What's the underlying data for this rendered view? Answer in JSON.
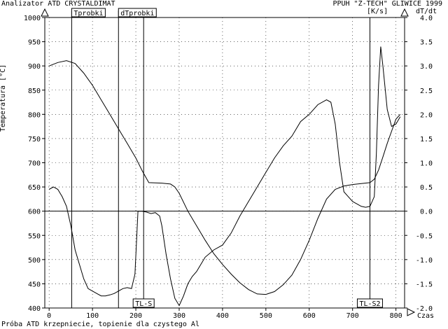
{
  "header": {
    "left_title": "Analizator ATD CRYSTALDIMAT",
    "right_title": "PPUH \"Z-TECH\" GLIWICE 1999",
    "right_unit": "[K/s]",
    "right_axis_symbol": "dT/dt",
    "left_axis_label": "Temperatura [°C]"
  },
  "footer": {
    "caption": "Próba ATD krzepniecie, topienie dla czystego Al",
    "x_axis_label": "Czas"
  },
  "markers": {
    "tprobki": "Tprobki",
    "dtprobki": "dTprobki",
    "tl_s": "TL-S",
    "tl_s2": "TL-S2"
  },
  "chart_data": {
    "type": "line",
    "title": "Analizator ATD CRYSTALDIMAT",
    "xlabel": "Czas",
    "ylabel": "Temperatura [°C]",
    "y2label": "dT/dt [K/s]",
    "xlim": [
      -10,
      820
    ],
    "ylim": [
      400,
      1000
    ],
    "y2lim": [
      -2.0,
      4.0
    ],
    "x_ticks": [
      0,
      100,
      200,
      300,
      400,
      500,
      600,
      700,
      800
    ],
    "y_ticks": [
      400,
      450,
      500,
      550,
      600,
      650,
      700,
      750,
      800,
      850,
      900,
      950,
      1000
    ],
    "y2_ticks": [
      "-2.0",
      "-1.5",
      "-1.0",
      "-0.5",
      "0.0",
      "0.5",
      "1.0",
      "1.5",
      "2.0",
      "2.5",
      "3.0",
      "3.5",
      "4.0"
    ],
    "grid": "dotted",
    "vertical_markers": [
      {
        "label": "Tprobki",
        "x": 52
      },
      {
        "label": "dTprobki",
        "x": 160
      },
      {
        "label": "TL-S",
        "x": 218
      },
      {
        "label": "TL-S2",
        "x": 740
      }
    ],
    "series": [
      {
        "axis": "left",
        "x": [
          0,
          20,
          40,
          60,
          80,
          100,
          120,
          140,
          160,
          180,
          200,
          215,
          230,
          260,
          280,
          290,
          300,
          320,
          340,
          360,
          380,
          400,
          420,
          440,
          460,
          480,
          500,
          520,
          540,
          560,
          580,
          600,
          620,
          640,
          660,
          680,
          700,
          720,
          740,
          750,
          760,
          770,
          780,
          790,
          800,
          810
        ],
        "y": [
          900,
          907,
          911,
          905,
          885,
          860,
          830,
          800,
          770,
          740,
          710,
          683,
          659,
          658,
          656,
          650,
          637,
          600,
          570,
          540,
          512,
          490,
          470,
          452,
          438,
          429,
          428,
          434,
          448,
          468,
          500,
          540,
          585,
          625,
          645,
          652,
          655,
          657,
          659,
          666,
          685,
          712,
          740,
          765,
          790,
          800
        ]
      },
      {
        "axis": "right",
        "x": [
          0,
          10,
          20,
          30,
          40,
          50,
          60,
          70,
          80,
          90,
          100,
          110,
          120,
          130,
          140,
          150,
          160,
          170,
          180,
          190,
          198,
          205,
          215,
          225,
          235,
          245,
          255,
          260,
          270,
          280,
          290,
          300,
          310,
          320,
          330,
          340,
          350,
          360,
          380,
          400,
          420,
          440,
          460,
          480,
          500,
          520,
          540,
          560,
          580,
          600,
          620,
          640,
          650,
          660,
          670,
          680,
          690,
          700,
          710,
          720,
          730,
          740,
          750,
          755,
          760,
          765,
          770,
          780,
          790,
          800,
          810
        ],
        "y": [
          0.45,
          0.5,
          0.45,
          0.3,
          0.1,
          -0.3,
          -0.8,
          -1.1,
          -1.4,
          -1.6,
          -1.65,
          -1.7,
          -1.75,
          -1.75,
          -1.73,
          -1.7,
          -1.65,
          -1.6,
          -1.58,
          -1.6,
          -1.3,
          0.0,
          0.0,
          -0.02,
          -0.05,
          -0.03,
          -0.1,
          -0.3,
          -0.9,
          -1.4,
          -1.8,
          -1.95,
          -1.75,
          -1.5,
          -1.35,
          -1.25,
          -1.1,
          -0.95,
          -0.8,
          -0.7,
          -0.45,
          -0.1,
          0.2,
          0.5,
          0.8,
          1.1,
          1.35,
          1.55,
          1.85,
          2.0,
          2.2,
          2.3,
          2.25,
          1.8,
          1.0,
          0.4,
          0.3,
          0.2,
          0.15,
          0.1,
          0.08,
          0.1,
          0.3,
          1.2,
          2.6,
          3.4,
          3.0,
          2.1,
          1.75,
          1.8,
          1.95
        ]
      }
    ]
  }
}
